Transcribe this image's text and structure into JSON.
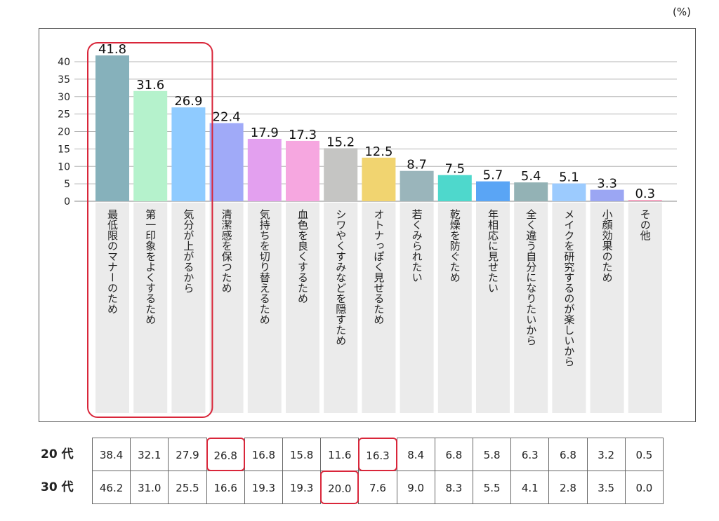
{
  "unit_label": "(%)",
  "chart_data": {
    "type": "bar",
    "categories": [
      "最低限のマナーのため",
      "第一印象をよくするため",
      "気分が上がるから",
      "清潔感を保つため",
      "気持ちを切り替えるため",
      "血色を良くするため",
      "シワやくすみなどを隠すため",
      "オトナっぽく見せるため",
      "若くみられたい",
      "乾燥を防ぐため",
      "年相応に見せたい",
      "全く違う自分になりたいから",
      "メイクを研究するのが楽しいから",
      "小顔効果のため",
      "その他"
    ],
    "values": [
      41.8,
      31.6,
      26.9,
      22.4,
      17.9,
      17.3,
      15.2,
      12.5,
      8.7,
      7.5,
      5.7,
      5.4,
      5.1,
      3.3,
      0.3
    ],
    "value_labels": [
      "41.8",
      "31.6",
      "26.9",
      "22.4",
      "17.9",
      "17.3",
      "15.2",
      "12.5",
      "8.7",
      "7.5",
      "5.7",
      "5.4",
      "5.1",
      "3.3",
      "0.3"
    ],
    "colors": [
      "#86b1bb",
      "#b5f2cc",
      "#8fcbff",
      "#a0aaf8",
      "#e3a0ef",
      "#f6a7e0",
      "#c5c5c3",
      "#f1d470",
      "#9ab5bb",
      "#4ed8cc",
      "#5aa5f5",
      "#93b2b5",
      "#9ccbfe",
      "#9ba6f3",
      "#f4a3c0"
    ],
    "yticks": [
      "0",
      "5",
      "10",
      "15",
      "20",
      "25",
      "30",
      "35",
      "40"
    ],
    "ylim": [
      0,
      45
    ],
    "grid": true,
    "highlight_categories": [
      0,
      1,
      2
    ],
    "highlight_color": "#d9263a"
  },
  "table": {
    "rows": [
      {
        "label": "20 代",
        "values": [
          "38.4",
          "32.1",
          "27.9",
          "26.8",
          "16.8",
          "15.8",
          "11.6",
          "16.3",
          "8.4",
          "6.8",
          "5.8",
          "6.3",
          "6.8",
          "3.2",
          "0.5"
        ],
        "highlight": [
          3,
          7
        ]
      },
      {
        "label": "30 代",
        "values": [
          "46.2",
          "31.0",
          "25.5",
          "16.6",
          "19.3",
          "19.3",
          "20.0",
          "7.6",
          "9.0",
          "8.3",
          "5.5",
          "4.1",
          "2.8",
          "3.5",
          "0.0"
        ],
        "highlight": [
          6
        ]
      }
    ]
  }
}
